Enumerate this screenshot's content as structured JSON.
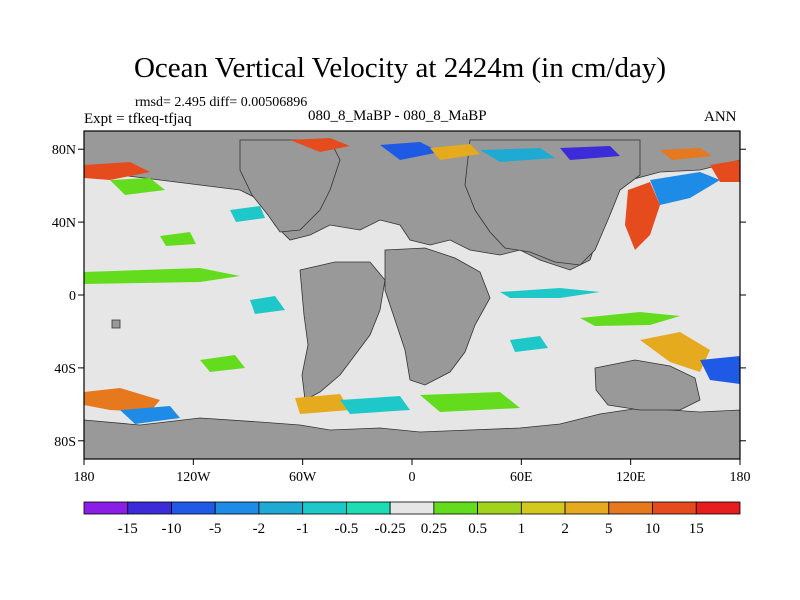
{
  "figure": {
    "title": "Ocean Vertical Velocity at 2424m (in cm/day)",
    "stats": "rmsd= 2.495 diff= 0.00506896",
    "expt": "Expt = tfkeq-tfjaq",
    "cases": "080_8_MaBP - 080_8_MaBP",
    "season": "ANN"
  },
  "map": {
    "lat_labels": [
      "80N",
      "40N",
      "0",
      "40S",
      "80S"
    ],
    "lon_labels": [
      "180",
      "120W",
      "60W",
      "0",
      "60E",
      "120E",
      "180"
    ],
    "ocean_near_zero_color": "#e6e6e6",
    "land_color": "#999999"
  },
  "colorbar": {
    "labels": [
      "-15",
      "-10",
      "-5",
      "-2",
      "-1",
      "-0.5",
      "-0.25",
      "0.25",
      "0.5",
      "1",
      "2",
      "5",
      "10",
      "15"
    ],
    "colors": [
      "#8a1ee6",
      "#3c2bd8",
      "#1e5ae6",
      "#1e8ce6",
      "#1eaad2",
      "#1ec8c8",
      "#1edcb4",
      "#e6e6e6",
      "#64dc1e",
      "#a0d21e",
      "#d2c81e",
      "#e6aa1e",
      "#e6781e",
      "#e64b1e",
      "#e61e1e"
    ]
  }
}
